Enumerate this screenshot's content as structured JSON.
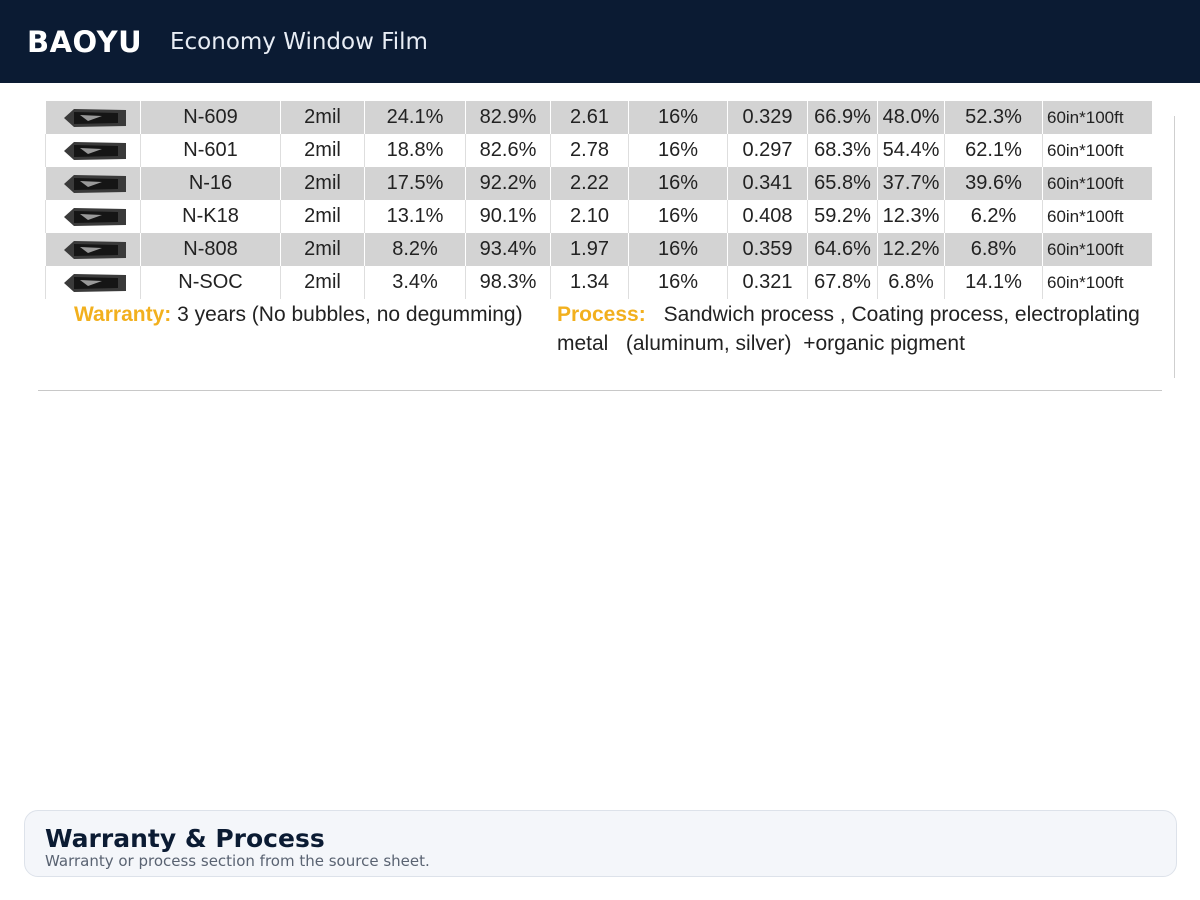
{
  "header": {
    "brand": "BAOYU",
    "title": "Economy Window Film"
  },
  "table": {
    "rows": [
      {
        "model": "N-609",
        "thickness": "2mil",
        "vlt": "24.1%",
        "uv": "82.9%",
        "sc": "2.61",
        "reflect": "16%",
        "shgc": "0.329",
        "tser": "66.9%",
        "ir": "48.0%",
        "glare": "52.3%",
        "size": "60in*100ft"
      },
      {
        "model": "N-601",
        "thickness": "2mil",
        "vlt": "18.8%",
        "uv": "82.6%",
        "sc": "2.78",
        "reflect": "16%",
        "shgc": "0.297",
        "tser": "68.3%",
        "ir": "54.4%",
        "glare": "62.1%",
        "size": "60in*100ft"
      },
      {
        "model": "N-16",
        "thickness": "2mil",
        "vlt": "17.5%",
        "uv": "92.2%",
        "sc": "2.22",
        "reflect": "16%",
        "shgc": "0.341",
        "tser": "65.8%",
        "ir": "37.7%",
        "glare": "39.6%",
        "size": "60in*100ft"
      },
      {
        "model": "N-K18",
        "thickness": "2mil",
        "vlt": "13.1%",
        "uv": "90.1%",
        "sc": "2.10",
        "reflect": "16%",
        "shgc": "0.408",
        "tser": "59.2%",
        "ir": "12.3%",
        "glare": "6.2%",
        "size": "60in*100ft"
      },
      {
        "model": "N-808",
        "thickness": "2mil",
        "vlt": "8.2%",
        "uv": "93.4%",
        "sc": "1.97",
        "reflect": "16%",
        "shgc": "0.359",
        "tser": "64.6%",
        "ir": "12.2%",
        "glare": "6.8%",
        "size": "60in*100ft"
      },
      {
        "model": "N-SOC",
        "thickness": "2mil",
        "vlt": "3.4%",
        "uv": "98.3%",
        "sc": "1.34",
        "reflect": "16%",
        "shgc": "0.321",
        "tser": "67.8%",
        "ir": "6.8%",
        "glare": "14.1%",
        "size": "60in*100ft"
      }
    ]
  },
  "notes": {
    "warranty_label": "Warranty:",
    "warranty_text": "3 years (No bubbles, no degumming)",
    "process_label": "Process:",
    "process_line1": "Sandwich process , Coating process, electroplating",
    "process_line2": "metal   (aluminum, silver)  +organic pigment"
  },
  "footer": {
    "title": "Warranty & Process",
    "subtitle": "Warranty or process section from the source sheet."
  },
  "colors": {
    "header_bg": "#0b1b33",
    "label_accent": "#f2b01e",
    "row_alt": "#d3d3d3"
  }
}
